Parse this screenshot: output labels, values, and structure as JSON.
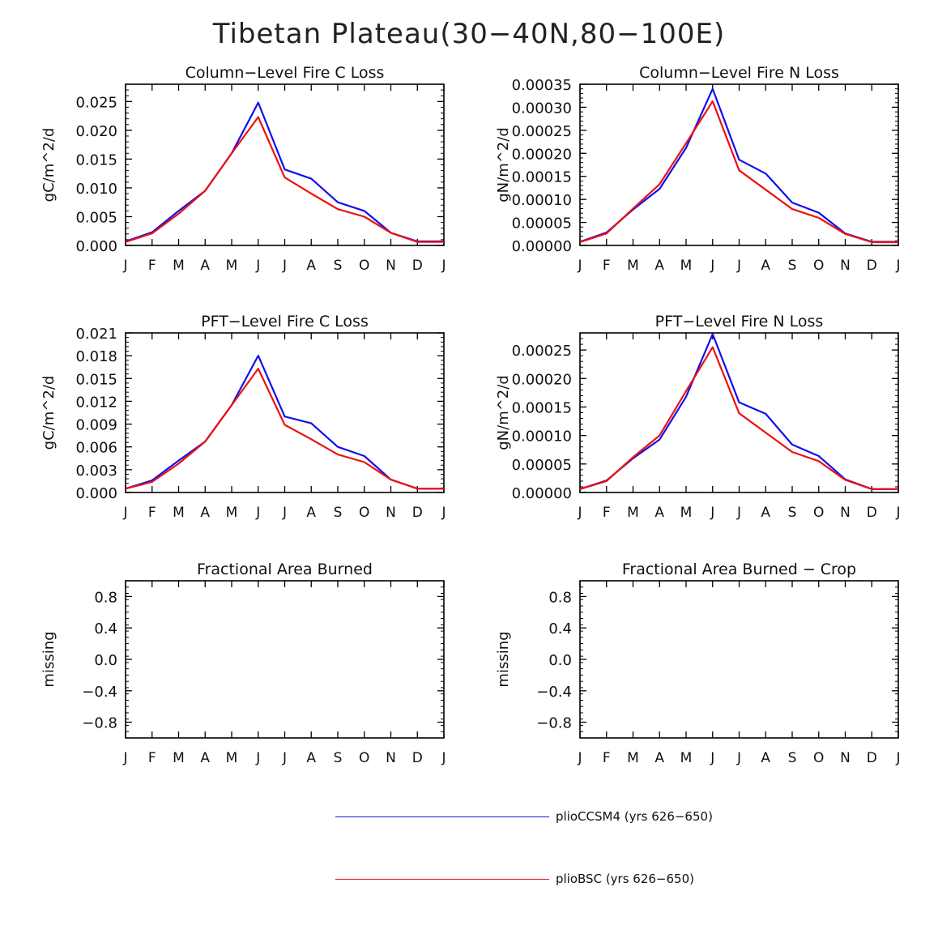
{
  "figure_title": "Tibetan Plateau(30−40N,80−100E)",
  "colors": {
    "series1": "#1010ee",
    "series2": "#ee1010",
    "axis": "#000000"
  },
  "legend": [
    {
      "name": "plioCCSM4 (yrs 626−650)",
      "color": "#1010ee"
    },
    {
      "name": "plioBSC (yrs 626−650)",
      "color": "#ee1010"
    }
  ],
  "chart_data": [
    {
      "type": "line",
      "title": "Column−Level Fire C Loss",
      "ylabel": "gC/m^2/d",
      "categories": [
        "J",
        "F",
        "M",
        "A",
        "M",
        "J",
        "J",
        "A",
        "S",
        "O",
        "N",
        "D",
        "J"
      ],
      "yticks": [
        "0.000",
        "0.005",
        "0.010",
        "0.015",
        "0.020",
        "0.025"
      ],
      "ylim": [
        0,
        0.028
      ],
      "series": [
        {
          "name": "plioCCSM4 (yrs 626−650)",
          "values": [
            0.0007,
            0.0023,
            0.006,
            0.0095,
            0.016,
            0.0248,
            0.0132,
            0.0116,
            0.0075,
            0.006,
            0.0022,
            0.0007,
            0.0007
          ]
        },
        {
          "name": "plioBSC (yrs 626−650)",
          "values": [
            0.0006,
            0.0021,
            0.0055,
            0.0095,
            0.016,
            0.0223,
            0.0118,
            0.009,
            0.0063,
            0.005,
            0.0022,
            0.0006,
            0.0006
          ]
        }
      ]
    },
    {
      "type": "line",
      "title": "Column−Level Fire N Loss",
      "ylabel": "gN/m^2/d",
      "categories": [
        "J",
        "F",
        "M",
        "A",
        "M",
        "J",
        "J",
        "A",
        "S",
        "O",
        "N",
        "D",
        "J"
      ],
      "yticks": [
        "0.00000",
        "0.00005",
        "0.00010",
        "0.00015",
        "0.00020",
        "0.00025",
        "0.00030",
        "0.00035"
      ],
      "ylim": [
        0,
        0.00035
      ],
      "series": [
        {
          "name": "plioCCSM4 (yrs 626−650)",
          "values": [
            8e-06,
            2.8e-05,
            7.8e-05,
            0.000123,
            0.000212,
            0.00034,
            0.000186,
            0.000156,
            9.3e-05,
            7.1e-05,
            2.6e-05,
            8e-06,
            8e-06
          ]
        },
        {
          "name": "plioBSC (yrs 626−650)",
          "values": [
            7e-06,
            2.6e-05,
            8e-05,
            0.000133,
            0.000222,
            0.000313,
            0.000163,
            0.000121,
            7.9e-05,
            6e-05,
            2.5e-05,
            7e-06,
            7e-06
          ]
        }
      ]
    },
    {
      "type": "line",
      "title": "PFT−Level Fire C Loss",
      "ylabel": "gC/m^2/d",
      "categories": [
        "J",
        "F",
        "M",
        "A",
        "M",
        "J",
        "J",
        "A",
        "S",
        "O",
        "N",
        "D",
        "J"
      ],
      "yticks": [
        "0.000",
        "0.003",
        "0.006",
        "0.009",
        "0.012",
        "0.015",
        "0.018",
        "0.021"
      ],
      "ylim": [
        0,
        0.021
      ],
      "series": [
        {
          "name": "plioCCSM4 (yrs 626−650)",
          "values": [
            0.0005,
            0.0016,
            0.0042,
            0.0067,
            0.0115,
            0.018,
            0.01,
            0.0091,
            0.006,
            0.0048,
            0.0017,
            0.0005,
            0.0005
          ]
        },
        {
          "name": "plioBSC (yrs 626−650)",
          "values": [
            0.0005,
            0.0014,
            0.0038,
            0.0067,
            0.0115,
            0.0163,
            0.0089,
            0.007,
            0.005,
            0.004,
            0.0017,
            0.0005,
            0.0005
          ]
        }
      ]
    },
    {
      "type": "line",
      "title": "PFT−Level Fire N Loss",
      "ylabel": "gN/m^2/d",
      "categories": [
        "J",
        "F",
        "M",
        "A",
        "M",
        "J",
        "J",
        "A",
        "S",
        "O",
        "N",
        "D",
        "J"
      ],
      "yticks": [
        "0.00000",
        "0.00005",
        "0.00010",
        "0.00015",
        "0.00020",
        "0.00025"
      ],
      "ylim": [
        0,
        0.00028
      ],
      "series": [
        {
          "name": "plioCCSM4 (yrs 626−650)",
          "values": [
            6e-06,
            2.1e-05,
            6e-05,
            9.3e-05,
            0.000168,
            0.000278,
            0.000158,
            0.000138,
            8.4e-05,
            6.4e-05,
            2.3e-05,
            6e-06,
            6e-06
          ]
        },
        {
          "name": "plioBSC (yrs 626−650)",
          "values": [
            6e-06,
            2e-05,
            6.2e-05,
            0.0001,
            0.000178,
            0.000255,
            0.000139,
            0.000105,
            7.1e-05,
            5.5e-05,
            2.2e-05,
            6e-06,
            6e-06
          ]
        }
      ]
    },
    {
      "type": "line",
      "title": "Fractional Area Burned",
      "ylabel": "missing",
      "categories": [
        "J",
        "F",
        "M",
        "A",
        "M",
        "J",
        "J",
        "A",
        "S",
        "O",
        "N",
        "D",
        "J"
      ],
      "yticks": [
        "−0.8",
        "−0.4",
        "0.0",
        "0.4",
        "0.8"
      ],
      "ylim": [
        -1,
        1
      ],
      "series": []
    },
    {
      "type": "line",
      "title": "Fractional Area Burned − Crop",
      "ylabel": "missing",
      "categories": [
        "J",
        "F",
        "M",
        "A",
        "M",
        "J",
        "J",
        "A",
        "S",
        "O",
        "N",
        "D",
        "J"
      ],
      "yticks": [
        "−0.8",
        "−0.4",
        "0.0",
        "0.4",
        "0.8"
      ],
      "ylim": [
        -1,
        1
      ],
      "series": []
    }
  ]
}
